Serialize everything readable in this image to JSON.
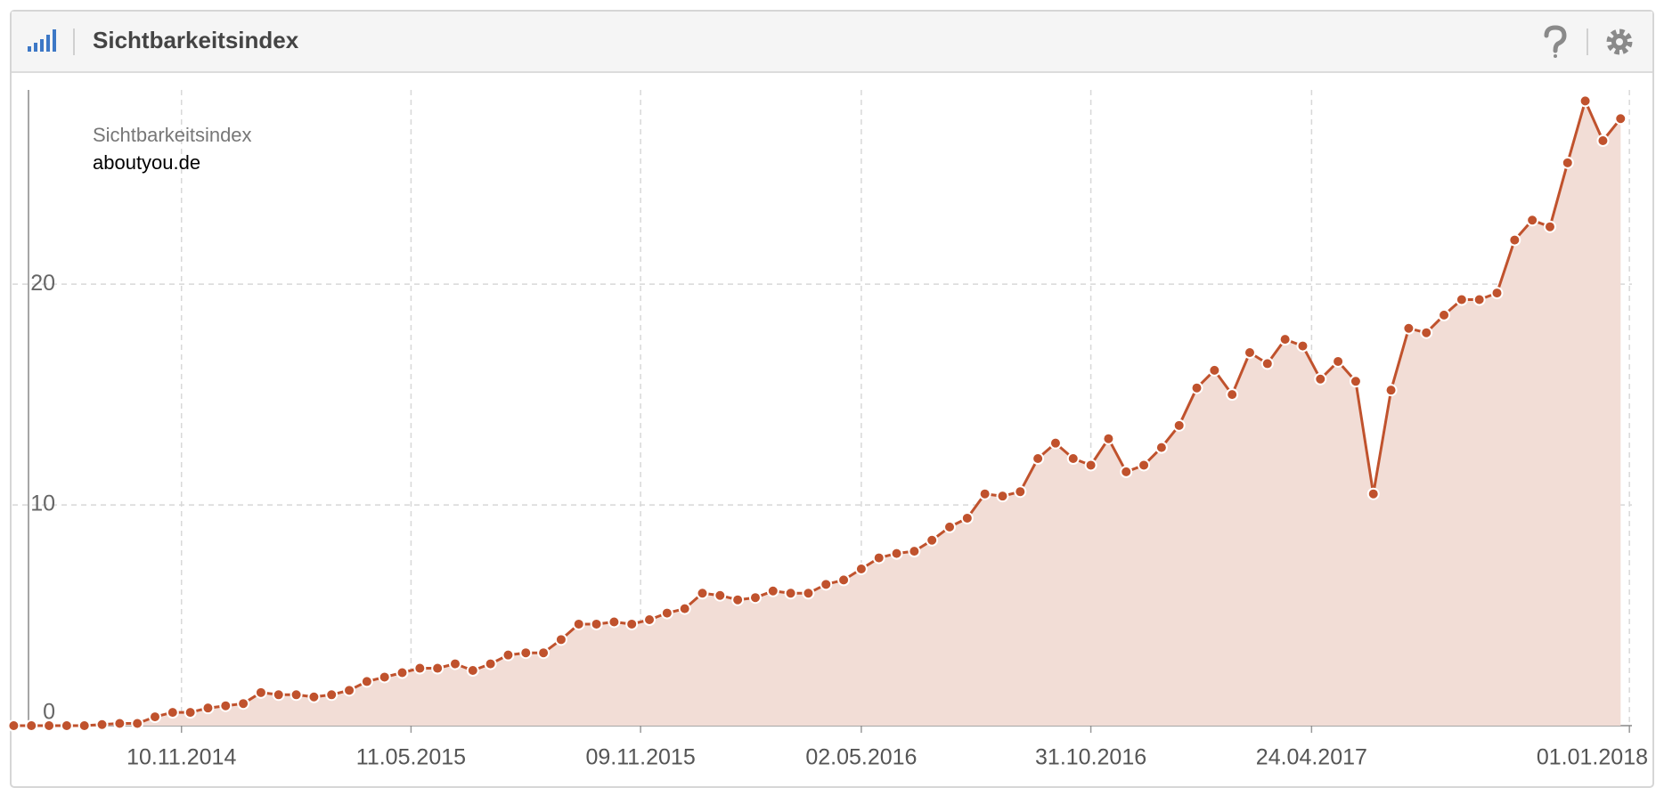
{
  "header": {
    "title": "Sichtbarkeitsindex"
  },
  "chart_data": {
    "type": "area",
    "legend_title": "Sichtbarkeitsindex",
    "x": [
      "2014-06-30",
      "2014-07-14",
      "2014-07-28",
      "2014-08-11",
      "2014-08-25",
      "2014-09-08",
      "2014-09-22",
      "2014-10-06",
      "2014-10-20",
      "2014-11-03",
      "2014-11-17",
      "2014-12-01",
      "2014-12-15",
      "2014-12-29",
      "2015-01-12",
      "2015-01-26",
      "2015-02-09",
      "2015-02-23",
      "2015-03-09",
      "2015-03-23",
      "2015-04-06",
      "2015-04-20",
      "2015-05-04",
      "2015-05-18",
      "2015-06-01",
      "2015-06-15",
      "2015-06-29",
      "2015-07-13",
      "2015-07-27",
      "2015-08-10",
      "2015-08-24",
      "2015-09-07",
      "2015-09-21",
      "2015-10-05",
      "2015-10-19",
      "2015-11-02",
      "2015-11-16",
      "2015-11-30",
      "2015-12-14",
      "2015-12-28",
      "2016-01-11",
      "2016-01-25",
      "2016-02-08",
      "2016-02-22",
      "2016-03-07",
      "2016-03-21",
      "2016-04-04",
      "2016-04-18",
      "2016-05-02",
      "2016-05-16",
      "2016-05-30",
      "2016-06-13",
      "2016-06-27",
      "2016-07-11",
      "2016-07-25",
      "2016-08-08",
      "2016-08-22",
      "2016-09-05",
      "2016-09-19",
      "2016-10-03",
      "2016-10-17",
      "2016-10-31",
      "2016-11-14",
      "2016-11-28",
      "2016-12-12",
      "2016-12-26",
      "2017-01-09",
      "2017-01-23",
      "2017-02-06",
      "2017-02-20",
      "2017-03-06",
      "2017-03-20",
      "2017-04-03",
      "2017-04-17",
      "2017-05-01",
      "2017-05-15",
      "2017-05-29",
      "2017-06-12",
      "2017-06-26",
      "2017-07-10",
      "2017-07-24",
      "2017-08-07",
      "2017-08-21",
      "2017-09-04",
      "2017-09-18",
      "2017-10-02",
      "2017-10-16",
      "2017-10-30",
      "2017-11-13",
      "2017-11-27",
      "2017-12-11",
      "2017-12-25"
    ],
    "series": [
      {
        "name": "aboutyou.de",
        "color": "#c0522d",
        "fill": "#f2ddd6",
        "values": [
          0,
          0,
          0,
          0,
          0,
          0.05,
          0.1,
          0.1,
          0.4,
          0.6,
          0.6,
          0.8,
          0.9,
          1.0,
          1.5,
          1.4,
          1.4,
          1.3,
          1.4,
          1.6,
          2.0,
          2.2,
          2.4,
          2.6,
          2.6,
          2.8,
          2.5,
          2.8,
          3.2,
          3.3,
          3.3,
          3.9,
          4.6,
          4.6,
          4.7,
          4.6,
          4.8,
          5.1,
          5.3,
          6.0,
          5.9,
          5.7,
          5.8,
          6.1,
          6.0,
          6.0,
          6.4,
          6.6,
          7.1,
          7.6,
          7.8,
          7.9,
          8.4,
          9.0,
          9.4,
          10.5,
          10.4,
          10.6,
          12.1,
          12.8,
          12.1,
          11.8,
          13.0,
          11.5,
          11.8,
          12.6,
          13.6,
          15.3,
          16.1,
          15.0,
          16.9,
          16.4,
          17.5,
          17.2,
          15.7,
          16.5,
          15.6,
          10.5,
          15.2,
          18.0,
          17.8,
          18.6,
          19.3,
          19.3,
          19.6,
          22.0,
          22.9,
          22.6,
          25.5,
          28.3,
          26.5,
          27.5
        ]
      }
    ],
    "xlim": [
      "2014-06-29",
      "2018-01-03"
    ],
    "xticks": [
      {
        "value": "2014-11-10",
        "label": "10.11.2014"
      },
      {
        "value": "2015-05-11",
        "label": "11.05.2015"
      },
      {
        "value": "2015-11-09",
        "label": "09.11.2015"
      },
      {
        "value": "2016-05-02",
        "label": "02.05.2016"
      },
      {
        "value": "2016-10-31",
        "label": "31.10.2016"
      },
      {
        "value": "2017-04-24",
        "label": "24.04.2017"
      },
      {
        "value": "2018-01-01",
        "label": "01.01.2018"
      }
    ],
    "ylim": [
      0,
      28.8
    ],
    "yticks": [
      0,
      10,
      20
    ],
    "grid": true
  }
}
